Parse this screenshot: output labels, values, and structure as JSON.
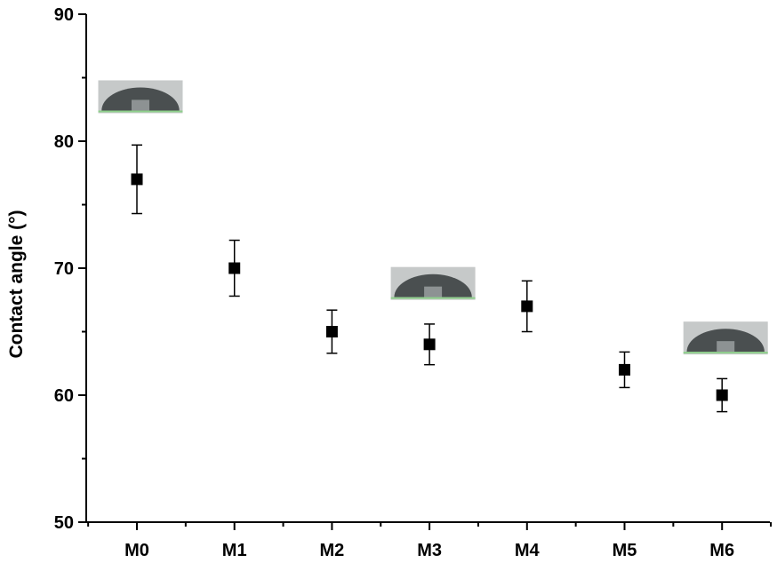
{
  "chart_data": {
    "type": "scatter",
    "title": "",
    "xlabel": "",
    "ylabel": "Contact angle (°)",
    "categories": [
      "M0",
      "M1",
      "M2",
      "M3",
      "M4",
      "M5",
      "M6"
    ],
    "series": [
      {
        "values": [
          77,
          70,
          65,
          64,
          67,
          62,
          60
        ],
        "error": [
          2.7,
          2.2,
          1.7,
          1.6,
          2.0,
          1.4,
          1.3
        ]
      }
    ],
    "ylim": [
      50,
      90
    ],
    "yticks": [
      50,
      60,
      70,
      80,
      90
    ],
    "grid": false,
    "legend": "none",
    "marker": "square",
    "colors": {
      "marker": "#000000",
      "axis": "#000000",
      "droplet": "#4a4f50",
      "substrate": "#c6c9c9",
      "baseline": "#8fd08c"
    },
    "droplet_images": [
      {
        "category": "M0",
        "value": 83.5
      },
      {
        "category": "M3",
        "value": 68.8
      },
      {
        "category": "M6",
        "value": 64.5
      }
    ]
  }
}
